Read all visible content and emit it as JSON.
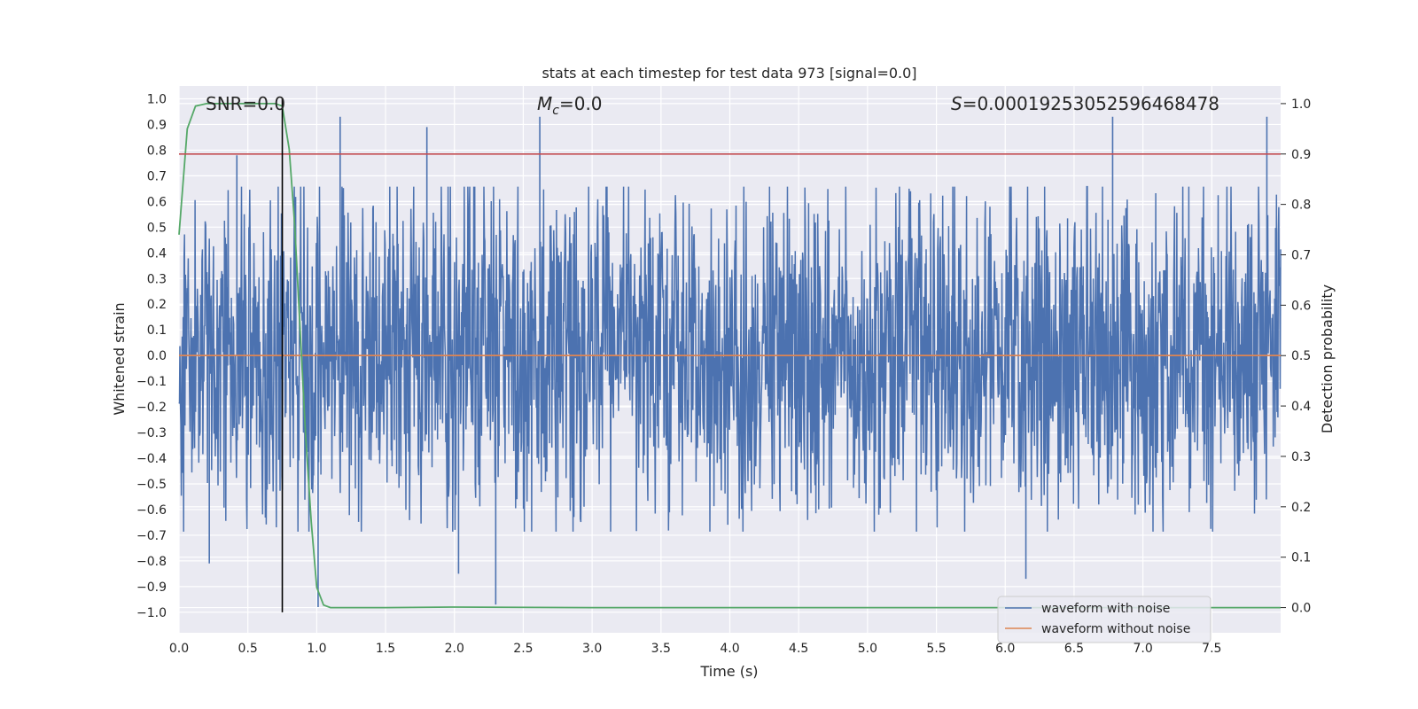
{
  "chart_data": {
    "type": "line",
    "title": "stats at each timestep for test data 973 [signal=0.0]",
    "xlabel": "Time (s)",
    "ylabel_left": "Whitened strain",
    "ylabel_right": "Detection probability",
    "xlim": [
      0.0,
      8.0
    ],
    "ylim_left": [
      -1.08,
      1.05
    ],
    "ylim_right": [
      -0.05,
      1.035
    ],
    "x_ticks": [
      "0.0",
      "0.5",
      "1.0",
      "1.5",
      "2.0",
      "2.5",
      "3.0",
      "3.5",
      "4.0",
      "4.5",
      "5.0",
      "5.5",
      "6.0",
      "6.5",
      "7.0",
      "7.5"
    ],
    "y_ticks_left": [
      "1.0",
      "0.9",
      "0.8",
      "0.7",
      "0.6",
      "0.5",
      "0.4",
      "0.3",
      "0.2",
      "0.1",
      "0.0",
      "-0.1",
      "-0.2",
      "-0.3",
      "-0.4",
      "-0.5",
      "-0.6",
      "-0.7",
      "-0.8",
      "-0.9",
      "-1.0"
    ],
    "y_ticks_right": [
      "1.0",
      "0.9",
      "0.8",
      "0.7",
      "0.6",
      "0.5",
      "0.4",
      "0.3",
      "0.2",
      "0.1",
      "0.0"
    ],
    "annotations": {
      "snr": "SNR=0.0",
      "mc_symbol": "M",
      "mc_sub": "c",
      "mc_value": "=0.0",
      "s_symbol": "S",
      "s_value": "=0.00019253052596468478"
    },
    "grid": true,
    "legend_position": "lower-right",
    "legend": [
      "waveform with noise",
      "waveform without noise"
    ],
    "series": [
      {
        "name": "waveform with noise",
        "color": "#4c72b0",
        "axis": "left",
        "kind": "noise",
        "typical_range": [
          -0.42,
          0.42
        ],
        "extreme_range": [
          -0.98,
          0.94
        ],
        "peaks": [
          {
            "t": 0.42,
            "y": 0.78
          },
          {
            "t": 1.17,
            "y": 0.93
          },
          {
            "t": 1.8,
            "y": 0.89
          },
          {
            "t": 2.62,
            "y": 0.93
          },
          {
            "t": 6.78,
            "y": 0.93
          },
          {
            "t": 7.9,
            "y": 0.93
          },
          {
            "t": 2.3,
            "y": -0.97
          },
          {
            "t": 6.15,
            "y": -0.87
          },
          {
            "t": 0.22,
            "y": -0.81
          },
          {
            "t": 1.01,
            "y": -0.98
          },
          {
            "t": 2.03,
            "y": -0.85
          }
        ]
      },
      {
        "name": "waveform without noise",
        "color": "#dd8452",
        "axis": "left",
        "t": [
          0.0,
          8.0
        ],
        "y": [
          0.0,
          0.0
        ]
      },
      {
        "name": "",
        "color": "#55a868",
        "axis": "right",
        "t": [
          0.0,
          0.06,
          0.12,
          0.2,
          0.3,
          0.45,
          0.6,
          0.7,
          0.75,
          0.8,
          0.84,
          0.88,
          0.92,
          0.96,
          1.0,
          1.05,
          1.1,
          1.5,
          2.0,
          3.0,
          4.0,
          5.0,
          6.0,
          7.0,
          8.0
        ],
        "y": [
          0.74,
          0.95,
          0.995,
          1.0,
          1.0,
          1.0,
          1.0,
          1.0,
          0.995,
          0.91,
          0.76,
          0.55,
          0.34,
          0.17,
          0.04,
          0.005,
          0.0,
          0.0,
          0.001,
          0.0,
          0.0,
          0.0,
          0.0,
          0.0,
          0.0
        ]
      }
    ],
    "reference_lines": [
      {
        "kind": "hline",
        "axis": "right",
        "value": 0.9,
        "color": "#c44e52"
      },
      {
        "kind": "vline",
        "value": 0.75,
        "color": "#000000",
        "y_from": -1.0,
        "y_to": 1.0
      }
    ]
  }
}
